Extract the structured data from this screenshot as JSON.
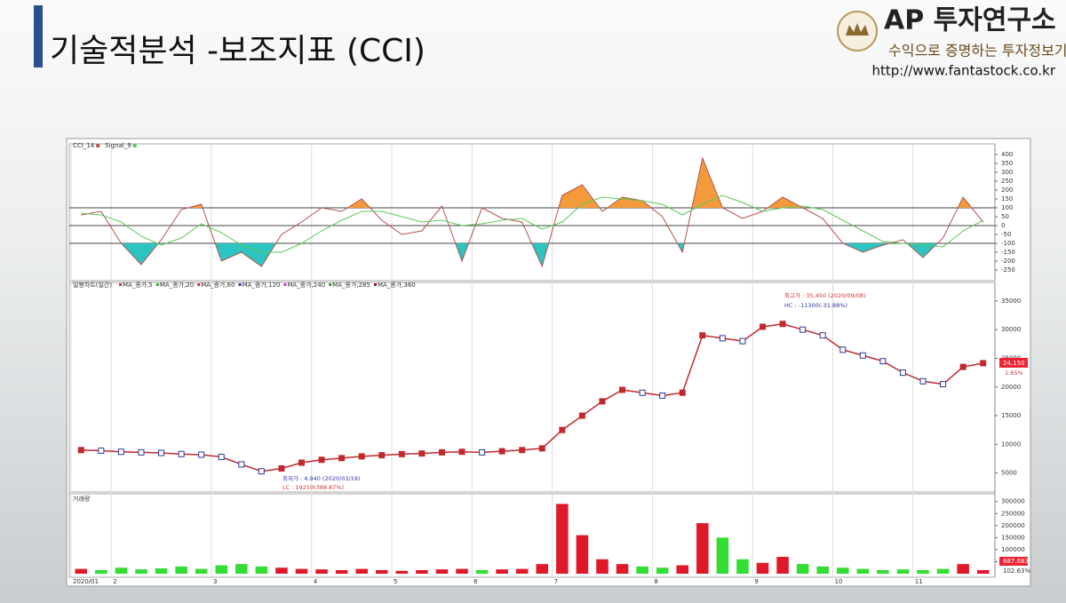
{
  "header": {
    "title": "기술적분석 -보조지표 (CCI)",
    "brand": "AP 투자연구소",
    "slogan": "수익으로 증명하는 투자정보기업",
    "url": "http://www.fantastock.co.kr"
  },
  "chart_data": [
    {
      "type": "line",
      "series": [
        {
          "name": "CCI_14",
          "color": "#b5524e",
          "values": [
            60,
            80,
            -100,
            -220,
            -80,
            90,
            120,
            -200,
            -150,
            -230,
            -50,
            20,
            100,
            80,
            150,
            30,
            -50,
            -30,
            110,
            -200,
            100,
            40,
            20,
            -230,
            170,
            230,
            80,
            160,
            140,
            50,
            -150,
            380,
            100,
            40,
            80,
            160,
            100,
            40,
            -100,
            -150,
            -110,
            -80,
            -180,
            -70,
            160,
            20
          ]
        },
        {
          "name": "Signal_9",
          "color": "#5cc85c",
          "values": [
            70,
            60,
            20,
            -60,
            -110,
            -70,
            10,
            -40,
            -110,
            -150,
            -150,
            -100,
            -30,
            30,
            80,
            80,
            50,
            20,
            30,
            0,
            10,
            30,
            40,
            -20,
            20,
            120,
            160,
            150,
            140,
            120,
            60,
            120,
            170,
            130,
            80,
            100,
            110,
            90,
            30,
            -30,
            -90,
            -100,
            -110,
            -120,
            -30,
            30
          ]
        }
      ],
      "levels": [
        100,
        0,
        -100
      ],
      "fill_colors": [
        "#f39a3a",
        "#2cc4c0"
      ],
      "ylim": [
        -290,
        420
      ],
      "yticks": [
        -250,
        -200,
        -150,
        -100,
        -50,
        0,
        50,
        100,
        150,
        200,
        250,
        300,
        350,
        400
      ]
    },
    {
      "type": "line",
      "title": "일봉차트(일간)",
      "color": "#c0282d",
      "legend": [
        "MA_종가,5",
        "MA_종가,20",
        "MA_종가,60",
        "MA_종가,120",
        "MA_종가,240",
        "MA_종가,285",
        "MA_종가,360"
      ],
      "legend_colors": [
        "#d33",
        "#3a3",
        "#c33",
        "#33a",
        "#c3c",
        "#393",
        "#822"
      ],
      "values": [
        9000,
        8900,
        8700,
        8600,
        8500,
        8300,
        8200,
        7800,
        6500,
        5300,
        5800,
        6800,
        7300,
        7600,
        7900,
        8100,
        8300,
        8400,
        8600,
        8700,
        8600,
        8800,
        9000,
        9300,
        12500,
        15000,
        17500,
        19500,
        19000,
        18500,
        19000,
        29000,
        28500,
        28000,
        30500,
        31000,
        30000,
        29000,
        26500,
        25500,
        24500,
        22500,
        21000,
        20500,
        23500,
        24150
      ],
      "value_labels": [
        null,
        null,
        null,
        null,
        null,
        null,
        null,
        null,
        null,
        null,
        null,
        null,
        null,
        null,
        null,
        null,
        null,
        null,
        null,
        null,
        null,
        null,
        null,
        null,
        null,
        null,
        null,
        null,
        null,
        null,
        null,
        null,
        null,
        null,
        null,
        null,
        null,
        null,
        null,
        null,
        null,
        null,
        null,
        null,
        null,
        "24,150"
      ],
      "annotations": [
        "최고가 : 35,450 (2020/09/08)",
        "HC : -11300(-31.88%)",
        "최저가 : 4,940 (2020/03/19)",
        "LC : 19210(388.87%)",
        "1.65%"
      ],
      "ylim": [
        2000,
        37000
      ],
      "yticks": [
        5000,
        10000,
        15000,
        20000,
        25000,
        30000,
        35000
      ]
    },
    {
      "type": "bar",
      "title": "거래량",
      "colors": [
        "#e0192a",
        "#33dd33"
      ],
      "categories": [
        "2020/01",
        null,
        "2",
        null,
        null,
        null,
        null,
        "3",
        null,
        null,
        null,
        null,
        "4",
        null,
        null,
        null,
        "5",
        null,
        null,
        null,
        "6",
        null,
        null,
        null,
        "7",
        null,
        null,
        null,
        null,
        "8",
        null,
        null,
        null,
        null,
        "9",
        null,
        null,
        null,
        "10",
        null,
        null,
        null,
        "11",
        null,
        null,
        null
      ],
      "values": [
        20000,
        15000,
        25000,
        18000,
        22000,
        30000,
        20000,
        35000,
        40000,
        30000,
        25000,
        20000,
        18000,
        15000,
        20000,
        15000,
        12000,
        15000,
        18000,
        20000,
        15000,
        18000,
        20000,
        40000,
        290000,
        160000,
        60000,
        40000,
        30000,
        25000,
        35000,
        210000,
        150000,
        60000,
        45000,
        70000,
        40000,
        30000,
        25000,
        20000,
        15000,
        18000,
        15000,
        20000,
        40000,
        15000
      ],
      "annotations": [
        "687,683",
        "102.63%"
      ],
      "ylim": [
        0,
        310000
      ],
      "yticks": [
        50000,
        100000,
        150000,
        200000,
        250000,
        300000
      ]
    }
  ]
}
